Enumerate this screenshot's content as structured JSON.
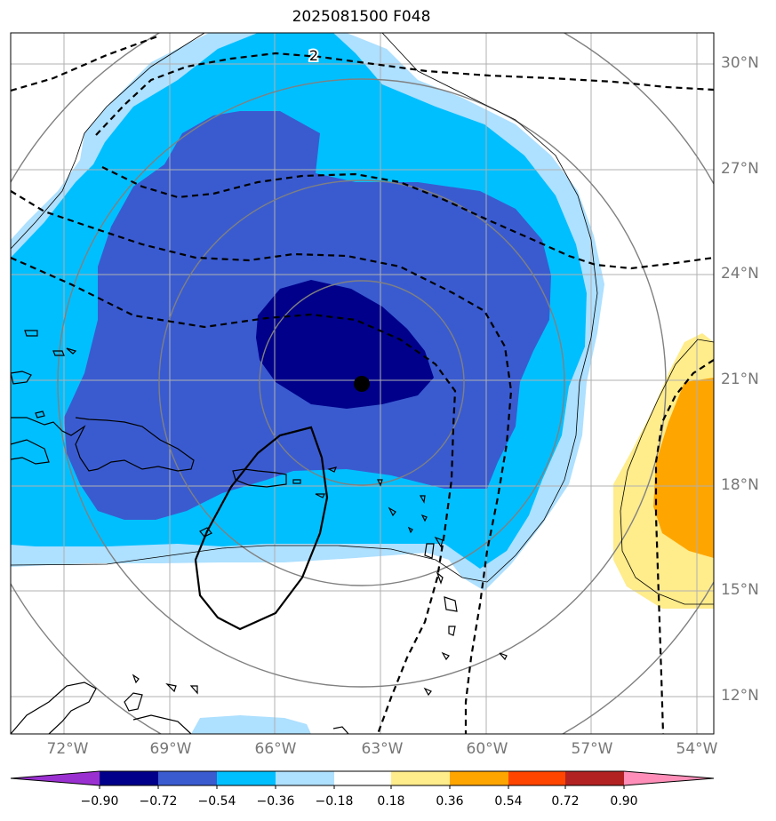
{
  "title": "2025081500 F048",
  "map": {
    "lat_labels": [
      "30°N",
      "27°N",
      "24°N",
      "21°N",
      "18°N",
      "15°N",
      "12°N"
    ],
    "lon_labels": [
      "72°W",
      "69°W",
      "66°W",
      "63°W",
      "60°W",
      "57°W",
      "54°W"
    ],
    "contour_label": "2",
    "storm_center": {
      "lon": "63.5°W",
      "lat": "20.9°N"
    }
  },
  "colorbar": {
    "levels": [
      "−0.90",
      "−0.72",
      "−0.54",
      "−0.36",
      "−0.18",
      "0.18",
      "0.36",
      "0.54",
      "0.72",
      "0.90"
    ],
    "colors": [
      "#9b30d0",
      "#00008b",
      "#3a5bd0",
      "#00bfff",
      "#aee0ff",
      "#ffffff",
      "#ffec8b",
      "#ffa500",
      "#ff4500",
      "#b22222",
      "#ff8fb8"
    ]
  }
}
